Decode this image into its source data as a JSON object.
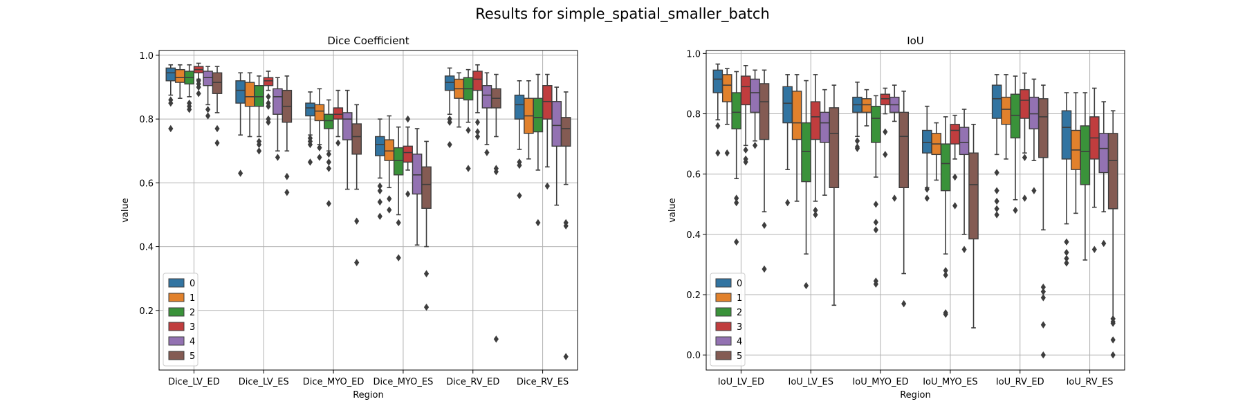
{
  "figure": {
    "title": "Results for simple_spatial_smaller_batch"
  },
  "colors": [
    "#3274a1",
    "#e1812c",
    "#3a923a",
    "#c03d3e",
    "#9372b2",
    "#845b53"
  ],
  "chart_data": [
    {
      "type": "box",
      "title": "Dice Coefficient",
      "xlabel": "Region",
      "ylabel": "value",
      "ylim": [
        0.0,
        1.0
      ],
      "yticks": [
        0.2,
        0.4,
        0.6,
        0.8,
        1.0
      ],
      "grid": true,
      "legend": {
        "position": "lower-left",
        "entries": [
          "0",
          "1",
          "2",
          "3",
          "4",
          "5"
        ]
      },
      "categories": [
        "Dice_LV_ED",
        "Dice_LV_ES",
        "Dice_MYO_ED",
        "Dice_MYO_ES",
        "Dice_RV_ED",
        "Dice_RV_ES"
      ],
      "boxes": [
        [
          {
            "q1": 0.92,
            "median": 0.945,
            "q3": 0.96,
            "wlo": 0.875,
            "whi": 0.97,
            "outliers": [
              0.86,
              0.85,
              0.77
            ]
          },
          {
            "q1": 0.915,
            "median": 0.93,
            "q3": 0.955,
            "wlo": 0.865,
            "whi": 0.97,
            "outliers": []
          },
          {
            "q1": 0.91,
            "median": 0.93,
            "q3": 0.95,
            "wlo": 0.87,
            "whi": 0.97,
            "outliers": [
              0.85,
              0.84,
              0.83
            ]
          },
          {
            "q1": 0.945,
            "median": 0.955,
            "q3": 0.965,
            "wlo": 0.925,
            "whi": 0.975,
            "outliers": [
              0.92,
              0.91,
              0.9,
              0.88
            ]
          },
          {
            "q1": 0.905,
            "median": 0.93,
            "q3": 0.95,
            "wlo": 0.845,
            "whi": 0.965,
            "outliers": [
              0.83,
              0.81
            ]
          },
          {
            "q1": 0.88,
            "median": 0.915,
            "q3": 0.945,
            "wlo": 0.82,
            "whi": 0.965,
            "outliers": [
              0.77,
              0.725
            ]
          }
        ],
        [
          {
            "q1": 0.85,
            "median": 0.89,
            "q3": 0.92,
            "wlo": 0.75,
            "whi": 0.945,
            "outliers": [
              0.63
            ]
          },
          {
            "q1": 0.84,
            "median": 0.87,
            "q3": 0.915,
            "wlo": 0.745,
            "whi": 0.945,
            "outliers": []
          },
          {
            "q1": 0.84,
            "median": 0.87,
            "q3": 0.905,
            "wlo": 0.745,
            "whi": 0.935,
            "outliers": [
              0.73,
              0.72,
              0.7
            ]
          },
          {
            "q1": 0.905,
            "median": 0.92,
            "q3": 0.93,
            "wlo": 0.89,
            "whi": 0.95,
            "outliers": [
              0.87,
              0.85,
              0.84,
              0.8,
              0.79
            ]
          },
          {
            "q1": 0.815,
            "median": 0.87,
            "q3": 0.895,
            "wlo": 0.7,
            "whi": 0.93,
            "outliers": [
              0.68
            ]
          },
          {
            "q1": 0.79,
            "median": 0.84,
            "q3": 0.89,
            "wlo": 0.7,
            "whi": 0.935,
            "outliers": [
              0.62,
              0.57
            ]
          }
        ],
        [
          {
            "q1": 0.81,
            "median": 0.835,
            "q3": 0.85,
            "wlo": 0.75,
            "whi": 0.885,
            "outliers": [
              0.74,
              0.73,
              0.72,
              0.665
            ]
          },
          {
            "q1": 0.795,
            "median": 0.825,
            "q3": 0.845,
            "wlo": 0.72,
            "whi": 0.895,
            "outliers": [
              0.71,
              0.68
            ]
          },
          {
            "q1": 0.77,
            "median": 0.795,
            "q3": 0.815,
            "wlo": 0.7,
            "whi": 0.86,
            "outliers": [
              0.69,
              0.665,
              0.645,
              0.535
            ]
          },
          {
            "q1": 0.8,
            "median": 0.815,
            "q3": 0.835,
            "wlo": 0.745,
            "whi": 0.89,
            "outliers": [
              0.725
            ]
          },
          {
            "q1": 0.735,
            "median": 0.8,
            "q3": 0.82,
            "wlo": 0.58,
            "whi": 0.89,
            "outliers": []
          },
          {
            "q1": 0.69,
            "median": 0.745,
            "q3": 0.785,
            "wlo": 0.58,
            "whi": 0.845,
            "outliers": [
              0.48,
              0.35
            ]
          }
        ],
        [
          {
            "q1": 0.685,
            "median": 0.72,
            "q3": 0.745,
            "wlo": 0.615,
            "whi": 0.8,
            "outliers": [
              0.59,
              0.575,
              0.54,
              0.495
            ]
          },
          {
            "q1": 0.67,
            "median": 0.7,
            "q3": 0.735,
            "wlo": 0.585,
            "whi": 0.81,
            "outliers": [
              0.55,
              0.515
            ]
          },
          {
            "q1": 0.625,
            "median": 0.67,
            "q3": 0.71,
            "wlo": 0.5,
            "whi": 0.775,
            "outliers": [
              0.475,
              0.365
            ]
          },
          {
            "q1": 0.665,
            "median": 0.695,
            "q3": 0.715,
            "wlo": 0.64,
            "whi": 0.775,
            "outliers": [
              0.8,
              0.565
            ]
          },
          {
            "q1": 0.565,
            "median": 0.625,
            "q3": 0.69,
            "wlo": 0.405,
            "whi": 0.77,
            "outliers": []
          },
          {
            "q1": 0.52,
            "median": 0.595,
            "q3": 0.65,
            "wlo": 0.4,
            "whi": 0.73,
            "outliers": [
              0.315,
              0.21
            ]
          }
        ],
        [
          {
            "q1": 0.89,
            "median": 0.915,
            "q3": 0.935,
            "wlo": 0.815,
            "whi": 0.96,
            "outliers": [
              0.8,
              0.79,
              0.72
            ]
          },
          {
            "q1": 0.865,
            "median": 0.895,
            "q3": 0.925,
            "wlo": 0.775,
            "whi": 0.945,
            "outliers": []
          },
          {
            "q1": 0.86,
            "median": 0.895,
            "q3": 0.93,
            "wlo": 0.79,
            "whi": 0.955,
            "outliers": [
              0.765,
              0.645
            ]
          },
          {
            "q1": 0.89,
            "median": 0.925,
            "q3": 0.95,
            "wlo": 0.82,
            "whi": 0.97,
            "outliers": [
              0.79,
              0.76,
              0.745
            ]
          },
          {
            "q1": 0.835,
            "median": 0.875,
            "q3": 0.905,
            "wlo": 0.72,
            "whi": 0.945,
            "outliers": [
              0.695
            ]
          },
          {
            "q1": 0.835,
            "median": 0.865,
            "q3": 0.895,
            "wlo": 0.745,
            "whi": 0.94,
            "outliers": [
              0.645,
              0.635,
              0.11
            ]
          }
        ],
        [
          {
            "q1": 0.8,
            "median": 0.845,
            "q3": 0.875,
            "wlo": 0.705,
            "whi": 0.92,
            "outliers": [
              0.665,
              0.655,
              0.56
            ]
          },
          {
            "q1": 0.755,
            "median": 0.81,
            "q3": 0.865,
            "wlo": 0.675,
            "whi": 0.92,
            "outliers": []
          },
          {
            "q1": 0.76,
            "median": 0.805,
            "q3": 0.865,
            "wlo": 0.64,
            "whi": 0.94,
            "outliers": [
              0.475
            ]
          },
          {
            "q1": 0.8,
            "median": 0.855,
            "q3": 0.905,
            "wlo": 0.65,
            "whi": 0.94,
            "outliers": [
              0.59
            ]
          },
          {
            "q1": 0.715,
            "median": 0.78,
            "q3": 0.855,
            "wlo": 0.53,
            "whi": 0.9,
            "outliers": []
          },
          {
            "q1": 0.715,
            "median": 0.77,
            "q3": 0.805,
            "wlo": 0.595,
            "whi": 0.885,
            "outliers": [
              0.475,
              0.465,
              0.055
            ]
          }
        ]
      ]
    },
    {
      "type": "box",
      "title": "IoU",
      "xlabel": "Region",
      "ylabel": "value",
      "ylim": [
        0.0,
        1.0
      ],
      "yticks": [
        0.0,
        0.2,
        0.4,
        0.6,
        0.8,
        1.0
      ],
      "grid": true,
      "legend": {
        "position": "lower-left",
        "entries": [
          "0",
          "1",
          "2",
          "3",
          "4",
          "5"
        ]
      },
      "categories": [
        "IoU_LV_ED",
        "IoU_LV_ES",
        "IoU_MYO_ED",
        "IoU_MYO_ES",
        "IoU_RV_ED",
        "IoU_RV_ES"
      ],
      "boxes": [
        [
          {
            "q1": 0.87,
            "median": 0.915,
            "q3": 0.945,
            "wlo": 0.78,
            "whi": 0.965,
            "outliers": [
              0.76,
              0.67
            ]
          },
          {
            "q1": 0.84,
            "median": 0.895,
            "q3": 0.93,
            "wlo": 0.765,
            "whi": 0.95,
            "outliers": [
              0.67
            ]
          },
          {
            "q1": 0.75,
            "median": 0.805,
            "q3": 0.87,
            "wlo": 0.585,
            "whi": 0.94,
            "outliers": [
              0.52,
              0.505,
              0.375
            ]
          },
          {
            "q1": 0.83,
            "median": 0.89,
            "q3": 0.925,
            "wlo": 0.695,
            "whi": 0.96,
            "outliers": [
              0.68,
              0.65,
              0.64
            ]
          },
          {
            "q1": 0.805,
            "median": 0.87,
            "q3": 0.915,
            "wlo": 0.71,
            "whi": 0.945,
            "outliers": [
              0.695
            ]
          },
          {
            "q1": 0.715,
            "median": 0.84,
            "q3": 0.9,
            "wlo": 0.475,
            "whi": 0.945,
            "outliers": [
              0.43,
              0.285
            ]
          }
        ],
        [
          {
            "q1": 0.77,
            "median": 0.835,
            "q3": 0.89,
            "wlo": 0.615,
            "whi": 0.93,
            "outliers": [
              0.505
            ]
          },
          {
            "q1": 0.715,
            "median": 0.77,
            "q3": 0.875,
            "wlo": 0.51,
            "whi": 0.93,
            "outliers": []
          },
          {
            "q1": 0.575,
            "median": 0.675,
            "q3": 0.77,
            "wlo": 0.335,
            "whi": 0.91,
            "outliers": [
              0.23
            ]
          },
          {
            "q1": 0.715,
            "median": 0.79,
            "q3": 0.84,
            "wlo": 0.51,
            "whi": 0.93,
            "outliers": [
              0.48,
              0.465
            ]
          },
          {
            "q1": 0.705,
            "median": 0.77,
            "q3": 0.805,
            "wlo": 0.53,
            "whi": 0.88,
            "outliers": []
          },
          {
            "q1": 0.555,
            "median": 0.735,
            "q3": 0.82,
            "wlo": 0.165,
            "whi": 0.895,
            "outliers": []
          }
        ],
        [
          {
            "q1": 0.805,
            "median": 0.83,
            "q3": 0.855,
            "wlo": 0.725,
            "whi": 0.905,
            "outliers": [
              0.71,
              0.69,
              0.685
            ]
          },
          {
            "q1": 0.805,
            "median": 0.83,
            "q3": 0.85,
            "wlo": 0.76,
            "whi": 0.88,
            "outliers": []
          },
          {
            "q1": 0.705,
            "median": 0.785,
            "q3": 0.825,
            "wlo": 0.59,
            "whi": 0.86,
            "outliers": [
              0.5,
              0.44,
              0.415,
              0.245,
              0.235
            ]
          },
          {
            "q1": 0.83,
            "median": 0.85,
            "q3": 0.865,
            "wlo": 0.8,
            "whi": 0.885,
            "outliers": [
              0.74,
              0.665
            ]
          },
          {
            "q1": 0.805,
            "median": 0.83,
            "q3": 0.855,
            "wlo": 0.775,
            "whi": 0.895,
            "outliers": [
              0.52
            ]
          },
          {
            "q1": 0.555,
            "median": 0.725,
            "q3": 0.805,
            "wlo": 0.27,
            "whi": 0.875,
            "outliers": [
              0.17
            ]
          }
        ],
        [
          {
            "q1": 0.67,
            "median": 0.705,
            "q3": 0.745,
            "wlo": 0.555,
            "whi": 0.825,
            "outliers": [
              0.55,
              0.52
            ]
          },
          {
            "q1": 0.665,
            "median": 0.7,
            "q3": 0.735,
            "wlo": 0.58,
            "whi": 0.77,
            "outliers": []
          },
          {
            "q1": 0.545,
            "median": 0.635,
            "q3": 0.7,
            "wlo": 0.335,
            "whi": 0.79,
            "outliers": [
              0.28,
              0.265,
              0.14,
              0.135
            ]
          },
          {
            "q1": 0.7,
            "median": 0.745,
            "q3": 0.765,
            "wlo": 0.65,
            "whi": 0.795,
            "outliers": [
              0.59,
              0.495
            ]
          },
          {
            "q1": 0.665,
            "median": 0.705,
            "q3": 0.755,
            "wlo": 0.4,
            "whi": 0.815,
            "outliers": [
              0.35
            ]
          },
          {
            "q1": 0.385,
            "median": 0.565,
            "q3": 0.67,
            "wlo": 0.09,
            "whi": 0.765,
            "outliers": []
          }
        ],
        [
          {
            "q1": 0.785,
            "median": 0.85,
            "q3": 0.895,
            "wlo": 0.665,
            "whi": 0.93,
            "outliers": [
              0.605,
              0.545,
              0.51,
              0.485,
              0.465
            ]
          },
          {
            "q1": 0.765,
            "median": 0.815,
            "q3": 0.855,
            "wlo": 0.65,
            "whi": 0.93,
            "outliers": []
          },
          {
            "q1": 0.72,
            "median": 0.795,
            "q3": 0.865,
            "wlo": 0.515,
            "whi": 0.925,
            "outliers": [
              0.48
            ]
          },
          {
            "q1": 0.785,
            "median": 0.845,
            "q3": 0.88,
            "wlo": 0.67,
            "whi": 0.935,
            "outliers": [
              0.655,
              0.52
            ]
          },
          {
            "q1": 0.75,
            "median": 0.8,
            "q3": 0.855,
            "wlo": 0.645,
            "whi": 0.915,
            "outliers": [
              0.545
            ]
          },
          {
            "q1": 0.655,
            "median": 0.79,
            "q3": 0.85,
            "wlo": 0.415,
            "whi": 0.895,
            "outliers": [
              0.225,
              0.21,
              0.19,
              0.1,
              0.0
            ]
          }
        ],
        [
          {
            "q1": 0.65,
            "median": 0.755,
            "q3": 0.81,
            "wlo": 0.435,
            "whi": 0.87,
            "outliers": [
              0.375,
              0.34,
              0.32,
              0.305
            ]
          },
          {
            "q1": 0.615,
            "median": 0.68,
            "q3": 0.745,
            "wlo": 0.47,
            "whi": 0.87,
            "outliers": []
          },
          {
            "q1": 0.565,
            "median": 0.675,
            "q3": 0.76,
            "wlo": 0.315,
            "whi": 0.87,
            "outliers": []
          },
          {
            "q1": 0.65,
            "median": 0.72,
            "q3": 0.79,
            "wlo": 0.49,
            "whi": 0.885,
            "outliers": [
              0.35
            ]
          },
          {
            "q1": 0.605,
            "median": 0.685,
            "q3": 0.735,
            "wlo": 0.475,
            "whi": 0.84,
            "outliers": [
              0.37
            ]
          },
          {
            "q1": 0.485,
            "median": 0.645,
            "q3": 0.735,
            "wlo": 0.12,
            "whi": 0.81,
            "outliers": [
              0.12,
              0.11,
              0.105,
              0.05,
              0.0
            ]
          }
        ]
      ]
    }
  ]
}
